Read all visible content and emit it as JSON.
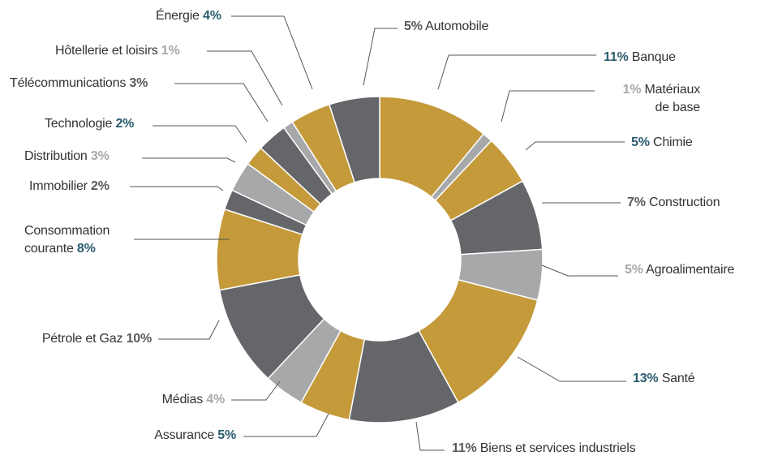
{
  "chart_data": {
    "type": "pie",
    "categories": [
      "Banque",
      "Matériaux\nde base",
      "Chimie",
      "Construction",
      "Agroalimentaire",
      "Santé",
      "Biens et services industriels",
      "Assurance",
      "Médias",
      "Pétrole et Gaz",
      "Consommation\ncourante",
      "Immobilier",
      "Distribution",
      "Technologie",
      "Télécommunications",
      "Hôtellerie et loisirs",
      "Énergie",
      "Automobile"
    ],
    "values": [
      11,
      1,
      5,
      7,
      5,
      13,
      11,
      5,
      4,
      10,
      8,
      2,
      3,
      2,
      3,
      1,
      4,
      5
    ],
    "value_labels": [
      "11%",
      "1%",
      "5%",
      "7%",
      "5%",
      "13%",
      "11%",
      "5%",
      "4%",
      "10%",
      "8%",
      "2%",
      "3%",
      "2%",
      "3%",
      "1%",
      "4%",
      "5%"
    ],
    "colors": [
      "#c49a3a",
      "#a7a8aa",
      "#c49a3a",
      "#65666a",
      "#a7a8aa",
      "#c49a3a",
      "#65666a",
      "#c49a3a",
      "#a7a8aa",
      "#65666a",
      "#c49a3a",
      "#65666a",
      "#a7a8aa",
      "#c49a3a",
      "#65666a",
      "#a7a8aa",
      "#c49a3a",
      "#65666a"
    ],
    "label_colors": [
      "#2b5c6e",
      "#a7a8aa",
      "#2b5c6e",
      "#58595b",
      "#a7a8aa",
      "#2b5c6e",
      "#58595b",
      "#2b5c6e",
      "#a7a8aa",
      "#58595b",
      "#2b5c6e",
      "#58595b",
      "#a7a8aa",
      "#2b5c6e",
      "#58595b",
      "#a7a8aa",
      "#2b5c6e",
      "#58595b"
    ]
  }
}
